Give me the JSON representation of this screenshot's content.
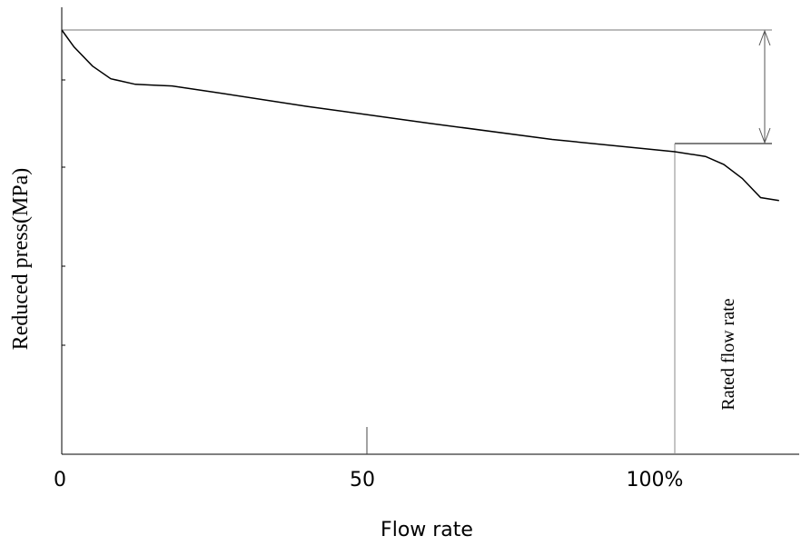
{
  "chart_data": {
    "type": "line",
    "xlabel": "Flow rate",
    "ylabel": "Reduced press(MPa)",
    "x_ticks": [
      "0",
      "50",
      "100%"
    ],
    "xlim": [
      0,
      123
    ],
    "ylim": [
      0,
      100
    ],
    "grid": false,
    "series": [
      {
        "x": [
          0,
          2,
          5,
          8,
          12,
          15,
          18,
          25,
          40,
          60,
          80,
          100,
          105,
          108,
          111,
          114,
          117
        ],
        "y": [
          100,
          96,
          91.5,
          88.5,
          87.2,
          87,
          86.8,
          85.3,
          82,
          78,
          74.2,
          71.3,
          70.2,
          68.3,
          65,
          60.5,
          59.8
        ]
      }
    ],
    "annotations": [
      {
        "text": "Rated flow rate",
        "x": 100
      }
    ]
  }
}
